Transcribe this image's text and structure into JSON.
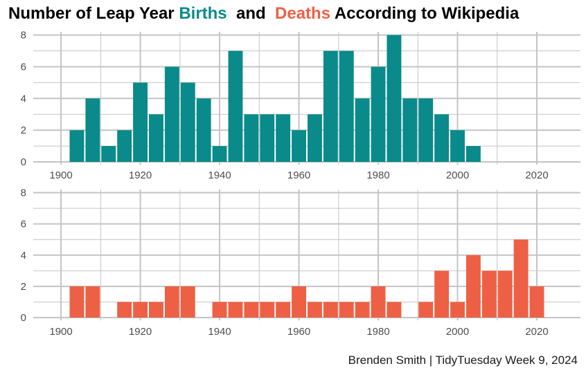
{
  "title": {
    "part1": "Number of Leap Year ",
    "births_word": "Births",
    "and_word": "and",
    "deaths_word": "Deaths",
    "part2": "According to Wikipedia"
  },
  "caption": "Brenden Smith | TidyTuesday Week 9, 2024",
  "colors": {
    "births": "#0a8a8a",
    "deaths": "#ee6045",
    "grid": "#c4c4c4"
  },
  "chart_data": [
    {
      "type": "bar",
      "name": "Births",
      "x_ticks": [
        1900,
        1920,
        1940,
        1960,
        1980,
        2000,
        2020
      ],
      "y_ticks": [
        0,
        2,
        4,
        6,
        8
      ],
      "xlim": [
        1893,
        2031
      ],
      "ylim": [
        0,
        8.2
      ],
      "bin_width": 4,
      "grid": true,
      "bins": [
        {
          "x": 1904,
          "y": 2
        },
        {
          "x": 1908,
          "y": 4
        },
        {
          "x": 1912,
          "y": 1
        },
        {
          "x": 1916,
          "y": 2
        },
        {
          "x": 1920,
          "y": 5
        },
        {
          "x": 1924,
          "y": 3
        },
        {
          "x": 1928,
          "y": 6
        },
        {
          "x": 1932,
          "y": 5
        },
        {
          "x": 1936,
          "y": 4
        },
        {
          "x": 1940,
          "y": 1
        },
        {
          "x": 1944,
          "y": 7
        },
        {
          "x": 1948,
          "y": 3
        },
        {
          "x": 1952,
          "y": 3
        },
        {
          "x": 1956,
          "y": 3
        },
        {
          "x": 1960,
          "y": 2
        },
        {
          "x": 1964,
          "y": 3
        },
        {
          "x": 1968,
          "y": 7
        },
        {
          "x": 1972,
          "y": 7
        },
        {
          "x": 1976,
          "y": 4
        },
        {
          "x": 1980,
          "y": 6
        },
        {
          "x": 1984,
          "y": 8
        },
        {
          "x": 1988,
          "y": 4
        },
        {
          "x": 1992,
          "y": 4
        },
        {
          "x": 1996,
          "y": 3
        },
        {
          "x": 2000,
          "y": 2
        },
        {
          "x": 2004,
          "y": 1
        }
      ]
    },
    {
      "type": "bar",
      "name": "Deaths",
      "x_ticks": [
        1900,
        1920,
        1940,
        1960,
        1980,
        2000,
        2020
      ],
      "y_ticks": [
        0,
        2,
        4,
        6,
        8
      ],
      "xlim": [
        1893,
        2031
      ],
      "ylim": [
        0,
        8.2
      ],
      "bin_width": 4,
      "grid": true,
      "bins": [
        {
          "x": 1904,
          "y": 2
        },
        {
          "x": 1908,
          "y": 2
        },
        {
          "x": 1916,
          "y": 1
        },
        {
          "x": 1920,
          "y": 1
        },
        {
          "x": 1924,
          "y": 1
        },
        {
          "x": 1928,
          "y": 2
        },
        {
          "x": 1932,
          "y": 2
        },
        {
          "x": 1940,
          "y": 1
        },
        {
          "x": 1944,
          "y": 1
        },
        {
          "x": 1948,
          "y": 1
        },
        {
          "x": 1952,
          "y": 1
        },
        {
          "x": 1956,
          "y": 1
        },
        {
          "x": 1960,
          "y": 2
        },
        {
          "x": 1964,
          "y": 1
        },
        {
          "x": 1968,
          "y": 1
        },
        {
          "x": 1972,
          "y": 1
        },
        {
          "x": 1976,
          "y": 1
        },
        {
          "x": 1980,
          "y": 2
        },
        {
          "x": 1984,
          "y": 1
        },
        {
          "x": 1992,
          "y": 1
        },
        {
          "x": 1996,
          "y": 3
        },
        {
          "x": 2000,
          "y": 1
        },
        {
          "x": 2004,
          "y": 4
        },
        {
          "x": 2008,
          "y": 3
        },
        {
          "x": 2012,
          "y": 3
        },
        {
          "x": 2016,
          "y": 5
        },
        {
          "x": 2020,
          "y": 2
        }
      ]
    }
  ]
}
